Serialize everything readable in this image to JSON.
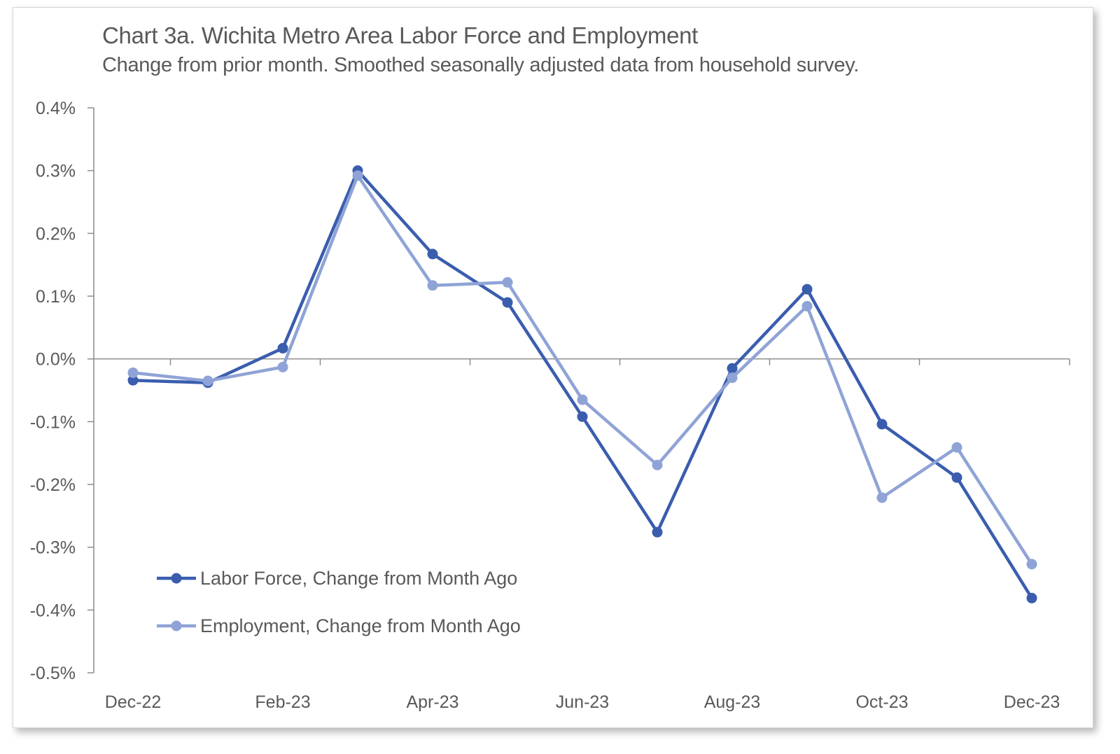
{
  "chart_data": {
    "type": "line",
    "title": "Chart 3a. Wichita Metro Area Labor Force and Employment",
    "subtitle": "Change from prior month. Smoothed seasonally adjusted data from household survey.",
    "x": [
      "Dec-22",
      "Jan-23",
      "Feb-23",
      "Mar-23",
      "Apr-23",
      "May-23",
      "Jun-23",
      "Jul-23",
      "Aug-23",
      "Sep-23",
      "Oct-23",
      "Nov-23",
      "Dec-23"
    ],
    "x_tick_labels": [
      "Dec-22",
      "Feb-23",
      "Apr-23",
      "Jun-23",
      "Aug-23",
      "Oct-23",
      "Dec-23"
    ],
    "y_tick_labels": [
      "0.4%",
      "0.3%",
      "0.2%",
      "0.1%",
      "0.0%",
      "-0.1%",
      "-0.2%",
      "-0.3%",
      "-0.4%",
      "-0.5%"
    ],
    "ylim": [
      -0.5,
      0.4
    ],
    "y_unit": "%",
    "grid": false,
    "legend_position": "bottom-left",
    "series": [
      {
        "name": "Labor Force, Change from Month Ago",
        "color": "#3A5DAE",
        "values": [
          -0.034,
          -0.038,
          0.017,
          0.3,
          0.167,
          0.09,
          -0.092,
          -0.276,
          -0.015,
          0.111,
          -0.104,
          -0.189,
          -0.381
        ]
      },
      {
        "name": "Employment, Change from Month Ago",
        "color": "#8FA3D6",
        "values": [
          -0.022,
          -0.035,
          -0.013,
          0.292,
          0.117,
          0.122,
          -0.065,
          -0.169,
          -0.03,
          0.084,
          -0.221,
          -0.141,
          -0.327
        ]
      }
    ]
  }
}
